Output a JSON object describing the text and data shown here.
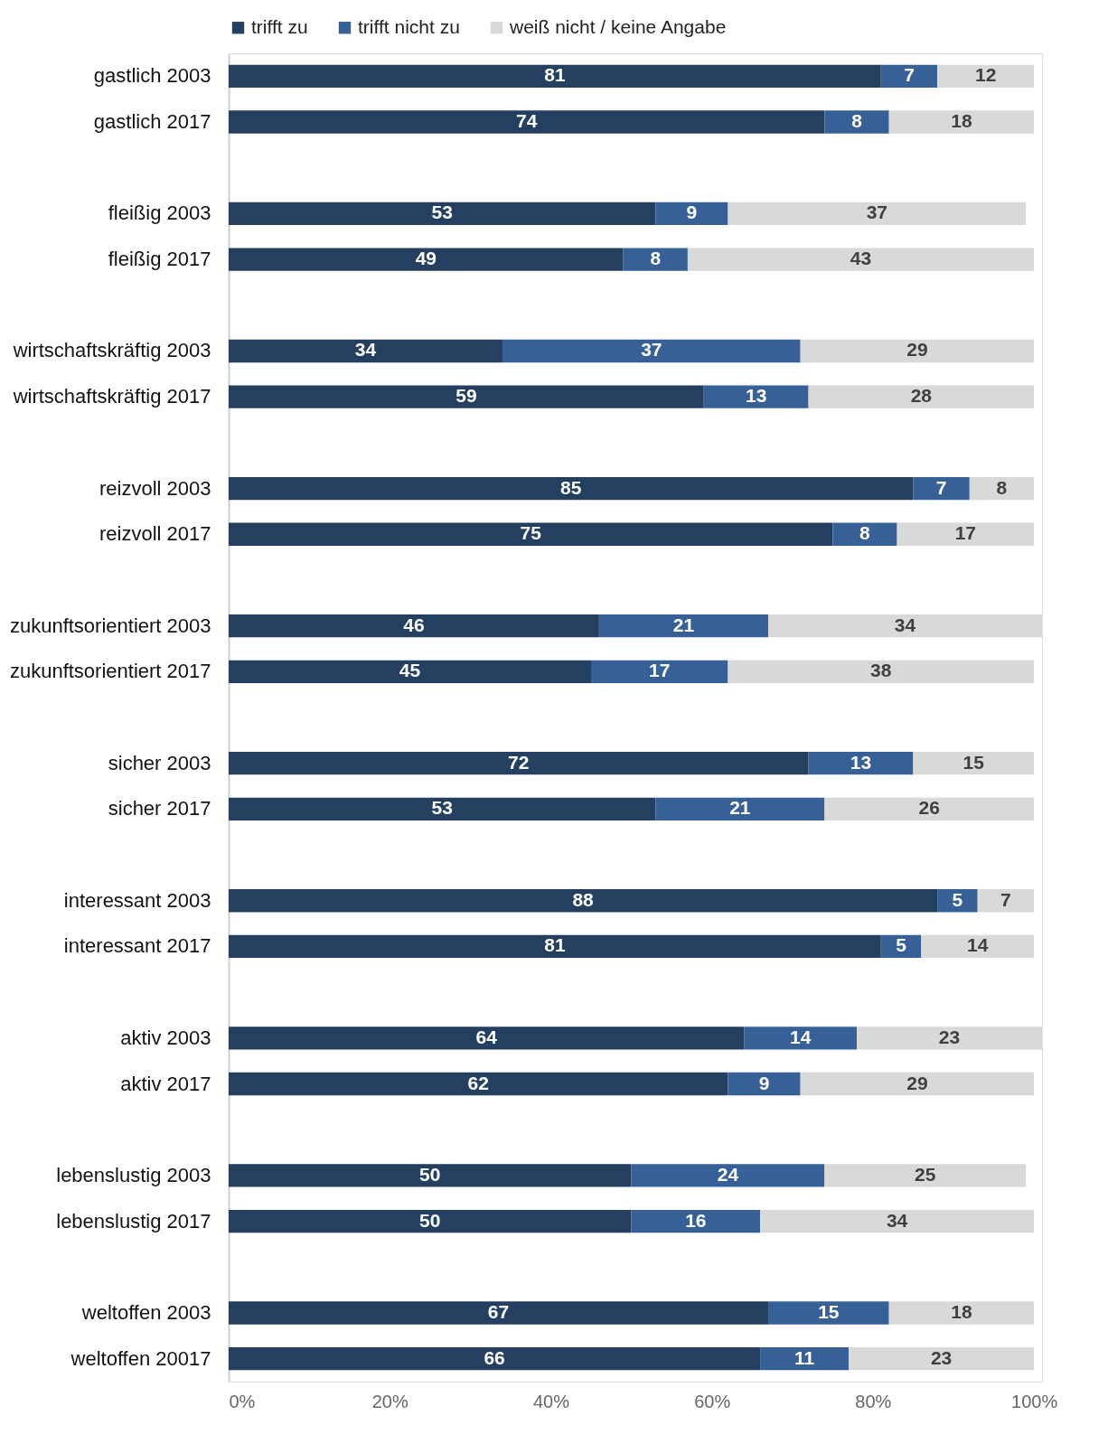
{
  "chart_data": {
    "type": "bar",
    "orientation": "horizontal",
    "stacked": true,
    "data_labels": true,
    "legend": "top",
    "grid": false,
    "categories": [
      "gastlich 2003",
      "gastlich 2017",
      null,
      "fleißig 2003",
      "fleißig 2017",
      null,
      "wirtschaftskräftig 2003",
      "wirtschaftskräftig 2017",
      null,
      "reizvoll 2003",
      "reizvoll 2017",
      null,
      "zukunftsorientiert 2003",
      "zukunftsorientiert 2017",
      null,
      "sicher 2003",
      "sicher 2017",
      null,
      "interessant 2003",
      "interessant 2017",
      null,
      "aktiv 2003",
      "aktiv 2017",
      null,
      "lebenslustig 2003",
      "lebenslustig 2017",
      null,
      "weltoffen 2003",
      "weltoffen 20017"
    ],
    "series": [
      {
        "name": "trifft zu",
        "color": "#243f60",
        "values": [
          81,
          74,
          null,
          53,
          49,
          null,
          34,
          59,
          null,
          85,
          75,
          null,
          46,
          45,
          null,
          72,
          53,
          null,
          88,
          81,
          null,
          64,
          62,
          null,
          50,
          50,
          null,
          67,
          66
        ]
      },
      {
        "name": "trifft nicht zu",
        "color": "#376097",
        "values": [
          7,
          8,
          null,
          9,
          8,
          null,
          37,
          13,
          null,
          7,
          8,
          null,
          21,
          17,
          null,
          13,
          21,
          null,
          5,
          5,
          null,
          14,
          9,
          null,
          24,
          16,
          null,
          15,
          11
        ]
      },
      {
        "name": "weiß nicht / keine Angabe",
        "color": "#d9d9d9",
        "values": [
          12,
          18,
          null,
          37,
          43,
          null,
          29,
          28,
          null,
          8,
          17,
          null,
          34,
          38,
          null,
          15,
          26,
          null,
          7,
          14,
          null,
          23,
          29,
          null,
          25,
          34,
          null,
          18,
          23
        ]
      }
    ],
    "xlim": [
      0,
      101
    ],
    "xticks": [
      {
        "value": 0,
        "label": "0%"
      },
      {
        "value": 20,
        "label": "20%"
      },
      {
        "value": 40,
        "label": "40%"
      },
      {
        "value": 60,
        "label": "60%"
      },
      {
        "value": 80,
        "label": "80%"
      },
      {
        "value": 100,
        "label": "100%"
      }
    ]
  }
}
